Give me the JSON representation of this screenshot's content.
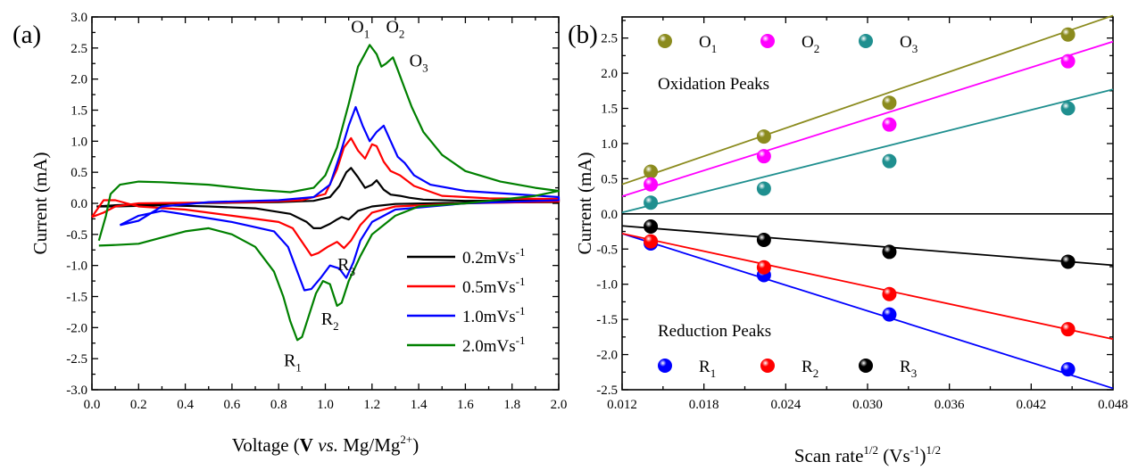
{
  "chart_data": [
    {
      "type": "line",
      "panel_label": "(a)",
      "xlabel": {
        "pre": "Voltage (",
        "bold": "V",
        "it": " vs. ",
        "post": "Mg/Mg",
        "sup": "2+",
        "close": ")"
      },
      "ylabel": "Current (mA)",
      "xlim": [
        0.0,
        2.0
      ],
      "ylim": [
        -3.0,
        3.0
      ],
      "xticks": [
        "0.0",
        "0.2",
        "0.4",
        "0.6",
        "0.8",
        "1.0",
        "1.2",
        "1.4",
        "1.6",
        "1.8",
        "2.0"
      ],
      "yticks": [
        "3.0",
        "2.5",
        "2.0",
        "1.5",
        "1.0",
        "0.5",
        "0.0",
        "-0.5",
        "-1.0",
        "-1.5",
        "-2.0",
        "-2.5",
        "-3.0"
      ],
      "annotations": [
        {
          "main": "O",
          "sub": "1",
          "x": 1.15,
          "y": 2.75
        },
        {
          "main": "O",
          "sub": "2",
          "x": 1.3,
          "y": 2.75
        },
        {
          "main": "O",
          "sub": "3",
          "x": 1.4,
          "y": 2.2
        },
        {
          "main": "R",
          "sub": "1",
          "x": 0.86,
          "y": -2.62
        },
        {
          "main": "R",
          "sub": "2",
          "x": 1.02,
          "y": -1.95
        },
        {
          "main": "R",
          "sub": "3",
          "x": 1.09,
          "y": -1.08
        }
      ],
      "legend_position": "bottom-right",
      "series": [
        {
          "name": "0.2mVs",
          "sup": "-1",
          "color": "#000000",
          "anodic": [
            [
              0.02,
              -0.05
            ],
            [
              0.1,
              -0.03
            ],
            [
              0.3,
              0.0
            ],
            [
              0.6,
              0.01
            ],
            [
              0.8,
              0.02
            ],
            [
              0.95,
              0.04
            ],
            [
              1.02,
              0.1
            ],
            [
              1.06,
              0.28
            ],
            [
              1.09,
              0.5
            ],
            [
              1.11,
              0.57
            ],
            [
              1.14,
              0.42
            ],
            [
              1.17,
              0.25
            ],
            [
              1.2,
              0.3
            ],
            [
              1.22,
              0.37
            ],
            [
              1.25,
              0.22
            ],
            [
              1.28,
              0.14
            ],
            [
              1.32,
              0.12
            ],
            [
              1.36,
              0.09
            ],
            [
              1.42,
              0.06
            ],
            [
              1.6,
              0.04
            ],
            [
              2.0,
              0.05
            ]
          ],
          "cathodic": [
            [
              2.0,
              0.02
            ],
            [
              1.6,
              0.01
            ],
            [
              1.3,
              -0.01
            ],
            [
              1.2,
              -0.05
            ],
            [
              1.14,
              -0.12
            ],
            [
              1.1,
              -0.26
            ],
            [
              1.07,
              -0.22
            ],
            [
              1.05,
              -0.26
            ],
            [
              1.02,
              -0.33
            ],
            [
              0.98,
              -0.4
            ],
            [
              0.95,
              -0.4
            ],
            [
              0.92,
              -0.3
            ],
            [
              0.85,
              -0.17
            ],
            [
              0.7,
              -0.08
            ],
            [
              0.5,
              -0.05
            ],
            [
              0.3,
              -0.03
            ],
            [
              0.1,
              -0.05
            ],
            [
              0.02,
              -0.05
            ]
          ]
        },
        {
          "name": "0.5mVs",
          "sup": "-1",
          "color": "#ff0000",
          "anodic": [
            [
              0.0,
              -0.22
            ],
            [
              0.05,
              -0.15
            ],
            [
              0.1,
              -0.05
            ],
            [
              0.2,
              0.0
            ],
            [
              0.4,
              0.01
            ],
            [
              0.7,
              0.02
            ],
            [
              0.9,
              0.05
            ],
            [
              1.0,
              0.15
            ],
            [
              1.05,
              0.55
            ],
            [
              1.08,
              0.9
            ],
            [
              1.11,
              1.05
            ],
            [
              1.14,
              0.85
            ],
            [
              1.17,
              0.72
            ],
            [
              1.2,
              0.95
            ],
            [
              1.22,
              0.92
            ],
            [
              1.25,
              0.67
            ],
            [
              1.28,
              0.52
            ],
            [
              1.32,
              0.45
            ],
            [
              1.38,
              0.28
            ],
            [
              1.5,
              0.12
            ],
            [
              1.7,
              0.08
            ],
            [
              2.0,
              0.07
            ]
          ],
          "cathodic": [
            [
              2.0,
              0.03
            ],
            [
              1.6,
              0.0
            ],
            [
              1.3,
              -0.05
            ],
            [
              1.2,
              -0.15
            ],
            [
              1.15,
              -0.35
            ],
            [
              1.11,
              -0.6
            ],
            [
              1.08,
              -0.72
            ],
            [
              1.05,
              -0.62
            ],
            [
              1.01,
              -0.7
            ],
            [
              0.97,
              -0.8
            ],
            [
              0.94,
              -0.84
            ],
            [
              0.9,
              -0.62
            ],
            [
              0.86,
              -0.4
            ],
            [
              0.8,
              -0.3
            ],
            [
              0.6,
              -0.2
            ],
            [
              0.4,
              -0.1
            ],
            [
              0.2,
              -0.05
            ],
            [
              0.1,
              0.05
            ],
            [
              0.05,
              0.05
            ],
            [
              0.0,
              -0.22
            ]
          ]
        },
        {
          "name": "1.0mVs",
          "sup": "-1",
          "color": "#0000ff",
          "anodic": [
            [
              0.12,
              -0.35
            ],
            [
              0.2,
              -0.28
            ],
            [
              0.3,
              -0.05
            ],
            [
              0.5,
              0.02
            ],
            [
              0.8,
              0.05
            ],
            [
              0.95,
              0.1
            ],
            [
              1.02,
              0.3
            ],
            [
              1.06,
              0.75
            ],
            [
              1.1,
              1.25
            ],
            [
              1.13,
              1.55
            ],
            [
              1.16,
              1.25
            ],
            [
              1.19,
              1.0
            ],
            [
              1.22,
              1.15
            ],
            [
              1.25,
              1.25
            ],
            [
              1.28,
              1.0
            ],
            [
              1.31,
              0.75
            ],
            [
              1.34,
              0.65
            ],
            [
              1.38,
              0.45
            ],
            [
              1.45,
              0.3
            ],
            [
              1.6,
              0.2
            ],
            [
              1.8,
              0.15
            ],
            [
              2.0,
              0.1
            ]
          ],
          "cathodic": [
            [
              2.0,
              0.05
            ],
            [
              1.6,
              0.0
            ],
            [
              1.3,
              -0.1
            ],
            [
              1.2,
              -0.3
            ],
            [
              1.15,
              -0.6
            ],
            [
              1.12,
              -0.95
            ],
            [
              1.09,
              -1.2
            ],
            [
              1.06,
              -1.05
            ],
            [
              1.02,
              -1.0
            ],
            [
              0.98,
              -1.2
            ],
            [
              0.94,
              -1.38
            ],
            [
              0.91,
              -1.4
            ],
            [
              0.88,
              -1.1
            ],
            [
              0.84,
              -0.7
            ],
            [
              0.78,
              -0.45
            ],
            [
              0.6,
              -0.3
            ],
            [
              0.4,
              -0.18
            ],
            [
              0.3,
              -0.12
            ],
            [
              0.2,
              -0.2
            ],
            [
              0.12,
              -0.35
            ]
          ]
        },
        {
          "name": "2.0mVs",
          "sup": "-1",
          "color": "#008000",
          "anodic": [
            [
              0.03,
              -0.6
            ],
            [
              0.06,
              -0.2
            ],
            [
              0.08,
              0.15
            ],
            [
              0.12,
              0.3
            ],
            [
              0.2,
              0.35
            ],
            [
              0.3,
              0.34
            ],
            [
              0.5,
              0.3
            ],
            [
              0.7,
              0.22
            ],
            [
              0.85,
              0.18
            ],
            [
              0.95,
              0.25
            ],
            [
              1.0,
              0.45
            ],
            [
              1.05,
              0.9
            ],
            [
              1.1,
              1.6
            ],
            [
              1.14,
              2.2
            ],
            [
              1.19,
              2.55
            ],
            [
              1.22,
              2.4
            ],
            [
              1.24,
              2.2
            ],
            [
              1.26,
              2.25
            ],
            [
              1.29,
              2.35
            ],
            [
              1.31,
              2.15
            ],
            [
              1.34,
              1.85
            ],
            [
              1.37,
              1.55
            ],
            [
              1.42,
              1.15
            ],
            [
              1.5,
              0.78
            ],
            [
              1.6,
              0.52
            ],
            [
              1.75,
              0.35
            ],
            [
              1.9,
              0.25
            ],
            [
              2.0,
              0.2
            ]
          ],
          "cathodic": [
            [
              2.0,
              0.2
            ],
            [
              1.9,
              0.12
            ],
            [
              1.6,
              0.0
            ],
            [
              1.4,
              -0.05
            ],
            [
              1.3,
              -0.2
            ],
            [
              1.2,
              -0.5
            ],
            [
              1.15,
              -0.85
            ],
            [
              1.1,
              -1.25
            ],
            [
              1.07,
              -1.6
            ],
            [
              1.05,
              -1.65
            ],
            [
              1.02,
              -1.3
            ],
            [
              0.99,
              -1.25
            ],
            [
              0.96,
              -1.45
            ],
            [
              0.93,
              -1.8
            ],
            [
              0.9,
              -2.15
            ],
            [
              0.88,
              -2.2
            ],
            [
              0.85,
              -1.9
            ],
            [
              0.82,
              -1.5
            ],
            [
              0.78,
              -1.1
            ],
            [
              0.7,
              -0.7
            ],
            [
              0.6,
              -0.5
            ],
            [
              0.5,
              -0.4
            ],
            [
              0.4,
              -0.45
            ],
            [
              0.3,
              -0.55
            ],
            [
              0.2,
              -0.65
            ],
            [
              0.1,
              -0.67
            ],
            [
              0.03,
              -0.68
            ]
          ]
        }
      ]
    },
    {
      "type": "scatter",
      "panel_label": "(b)",
      "xlabel": {
        "pre": "Scan rate",
        "sup1": "1/2",
        "mid": " (Vs",
        "sup2": "-1",
        "post": ")",
        "sup3": "1/2"
      },
      "ylabel": "Current (mA)",
      "xlim": [
        0.012,
        0.048
      ],
      "ylim": [
        -2.5,
        2.8
      ],
      "xticks": [
        "0.012",
        "0.018",
        "0.024",
        "0.030",
        "0.036",
        "0.042",
        "0.048"
      ],
      "yticks": [
        "2.5",
        "2.0",
        "1.5",
        "1.0",
        "0.5",
        "0.0",
        "-0.5",
        "-1.0",
        "-1.5",
        "-2.0",
        "-2.5"
      ],
      "zero_line": true,
      "group_labels": {
        "oxidation": "Oxidation Peaks",
        "reduction": "Reduction Peaks"
      },
      "x": [
        0.0141,
        0.0224,
        0.0316,
        0.0447
      ],
      "series": [
        {
          "name": "O",
          "sub": "1",
          "group": "oxidation",
          "color": "#8b8b1e",
          "values": [
            0.6,
            1.1,
            1.58,
            2.55
          ],
          "fit": [
            [
              0.012,
              0.42
            ],
            [
              0.048,
              2.82
            ]
          ]
        },
        {
          "name": "O",
          "sub": "2",
          "group": "oxidation",
          "color": "#ff00ff",
          "values": [
            0.42,
            0.82,
            1.27,
            2.17
          ],
          "fit": [
            [
              0.012,
              0.25
            ],
            [
              0.048,
              2.45
            ]
          ]
        },
        {
          "name": "O",
          "sub": "3",
          "group": "oxidation",
          "color": "#1f8f8f",
          "values": [
            0.16,
            0.36,
            0.75,
            1.5
          ],
          "fit": [
            [
              0.012,
              0.02
            ],
            [
              0.048,
              1.77
            ]
          ]
        },
        {
          "name": "R",
          "sub": "1",
          "group": "reduction",
          "color": "#0000ff",
          "values": [
            -0.42,
            -0.87,
            -1.43,
            -2.21
          ],
          "fit": [
            [
              0.012,
              -0.28
            ],
            [
              0.048,
              -2.48
            ]
          ]
        },
        {
          "name": "R",
          "sub": "2",
          "group": "reduction",
          "color": "#ff0000",
          "values": [
            -0.39,
            -0.76,
            -1.14,
            -1.64
          ],
          "fit": [
            [
              0.012,
              -0.28
            ],
            [
              0.048,
              -1.78
            ]
          ]
        },
        {
          "name": "R",
          "sub": "3",
          "group": "reduction",
          "color": "#000000",
          "values": [
            -0.18,
            -0.37,
            -0.54,
            -0.68
          ],
          "fit": [
            [
              0.012,
              -0.17
            ],
            [
              0.048,
              -0.73
            ]
          ]
        }
      ]
    }
  ]
}
